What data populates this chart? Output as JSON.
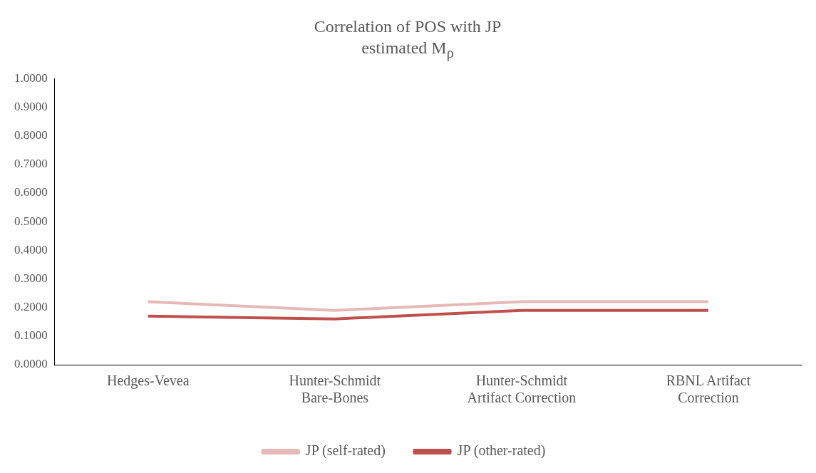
{
  "chart_data": {
    "type": "line",
    "title": "Correlation of POS with JP estimated M$_{ρ}$",
    "categories": [
      "Hedges-Vevea",
      "Hunter-Schmidt Bare-Bones",
      "Hunter-Schmidt Artifact Correction",
      "RBNL Artifact Correction"
    ],
    "series": [
      {
        "name": "JP (self-rated)",
        "color": "#e6b9b8",
        "values": [
          0.22,
          0.19,
          0.22,
          0.22
        ]
      },
      {
        "name": "JP (other-rated)",
        "color": "#c0504d",
        "values": [
          0.17,
          0.16,
          0.19,
          0.19
        ]
      }
    ],
    "ylim": [
      0,
      1
    ],
    "yticks": [
      {
        "value": 0,
        "label": "0.0000"
      },
      {
        "value": 0.1,
        "label": "0.1000"
      },
      {
        "value": 0.2,
        "label": "0.2000"
      },
      {
        "value": 0.3,
        "label": "0.3000"
      },
      {
        "value": 0.4,
        "label": "0.4000"
      },
      {
        "value": 0.5,
        "label": "0.5000"
      },
      {
        "value": 0.6,
        "label": "0.6000"
      },
      {
        "value": 0.7,
        "label": "0.7000"
      },
      {
        "value": 0.8,
        "label": "0.8000"
      },
      {
        "value": 0.9,
        "label": "0.9000"
      },
      {
        "value": 1,
        "label": "1.0000"
      }
    ],
    "grid": false,
    "legend": "bottom",
    "marker": "none",
    "line_style": "solid"
  }
}
